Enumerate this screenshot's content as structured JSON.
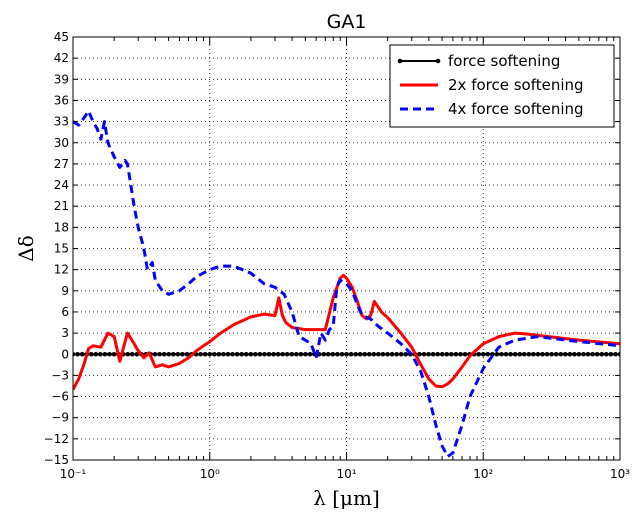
{
  "chart_data": {
    "type": "line",
    "title": "GA1",
    "xlabel": "λ [μm]",
    "ylabel": "Δδ",
    "xscale": "log",
    "xlim": [
      0.1,
      1000
    ],
    "ylim": [
      -15,
      45
    ],
    "grid": true,
    "legend_position": "top-right",
    "x_tick_labels": [
      "10⁻¹",
      "10⁰",
      "10¹",
      "10²",
      "10³"
    ],
    "y_tick_values": [
      -15,
      -12,
      -9,
      -6,
      -3,
      0,
      3,
      6,
      9,
      12,
      15,
      18,
      21,
      24,
      27,
      30,
      33,
      36,
      39,
      42,
      45
    ],
    "series": [
      {
        "name": "force softening",
        "color": "#000000",
        "style": "solid-dots",
        "x": [
          0.1,
          1000
        ],
        "y": [
          0,
          0
        ]
      },
      {
        "name": "2x force softening",
        "color": "#ff0000",
        "style": "solid",
        "x": [
          0.1,
          0.11,
          0.12,
          0.13,
          0.14,
          0.16,
          0.18,
          0.2,
          0.22,
          0.25,
          0.28,
          0.3,
          0.33,
          0.36,
          0.4,
          0.45,
          0.5,
          0.6,
          0.7,
          0.8,
          0.9,
          1.0,
          1.2,
          1.5,
          2.0,
          2.5,
          3.0,
          3.2,
          3.4,
          3.6,
          4.0,
          5.0,
          6.0,
          7.0,
          8.0,
          9.0,
          9.5,
          10.0,
          11.0,
          12.0,
          13.0,
          14.0,
          15.0,
          16.0,
          18.0,
          20.0,
          25.0,
          30.0,
          35.0,
          40.0,
          45.0,
          50.0,
          55.0,
          60.0,
          70.0,
          80.0,
          100.0,
          130.0,
          170.0,
          200.0,
          300.0,
          500.0,
          1000.0
        ],
        "y": [
          -5.0,
          -3.5,
          -1.5,
          0.8,
          1.2,
          1.0,
          3.0,
          2.5,
          -1.0,
          3.0,
          1.5,
          0.5,
          -0.5,
          0.2,
          -1.8,
          -1.5,
          -1.8,
          -1.3,
          -0.5,
          0.5,
          1.2,
          1.8,
          3.0,
          4.2,
          5.3,
          5.7,
          5.5,
          8.0,
          5.5,
          4.5,
          3.8,
          3.5,
          3.5,
          3.5,
          8.0,
          10.8,
          11.2,
          10.8,
          9.5,
          7.5,
          5.5,
          5.0,
          5.5,
          7.5,
          6.0,
          5.2,
          3.0,
          1.0,
          -1.5,
          -3.5,
          -4.5,
          -4.6,
          -4.2,
          -3.5,
          -1.8,
          -0.2,
          1.5,
          2.5,
          3.0,
          2.9,
          2.5,
          2.0,
          1.5
        ]
      },
      {
        "name": "4x force softening",
        "color": "#0000ff",
        "style": "dashed",
        "x": [
          0.1,
          0.11,
          0.12,
          0.13,
          0.14,
          0.15,
          0.16,
          0.17,
          0.18,
          0.2,
          0.22,
          0.24,
          0.25,
          0.26,
          0.28,
          0.3,
          0.33,
          0.35,
          0.38,
          0.4,
          0.45,
          0.5,
          0.6,
          0.7,
          0.8,
          1.0,
          1.2,
          1.5,
          2.0,
          2.5,
          3.0,
          3.5,
          4.0,
          4.5,
          5.0,
          5.5,
          6.0,
          6.5,
          7.0,
          7.5,
          8.0,
          8.5,
          9.0,
          10.0,
          11.0,
          12.0,
          13.0,
          15.0,
          17.0,
          20.0,
          25.0,
          30.0,
          35.0,
          40.0,
          45.0,
          50.0,
          55.0,
          60.0,
          70.0,
          80.0,
          100.0,
          130.0,
          170.0,
          250.0,
          400.0,
          1000.0
        ],
        "y": [
          33.0,
          32.5,
          33.5,
          34.5,
          33.0,
          32.0,
          30.5,
          33.0,
          30.0,
          28.0,
          26.5,
          27.5,
          27.0,
          25.0,
          21.0,
          18.0,
          15.0,
          12.0,
          13.0,
          10.5,
          9.0,
          8.5,
          9.0,
          10.0,
          11.0,
          12.0,
          12.5,
          12.5,
          11.5,
          10.0,
          9.5,
          8.5,
          6.0,
          2.5,
          2.0,
          1.5,
          -0.5,
          3.0,
          2.0,
          3.5,
          4.0,
          9.5,
          10.5,
          10.0,
          9.0,
          7.0,
          5.5,
          5.0,
          4.0,
          3.0,
          1.5,
          0.0,
          -2.5,
          -6.0,
          -10.0,
          -13.0,
          -14.5,
          -14.0,
          -10.0,
          -6.0,
          -2.0,
          1.0,
          2.0,
          2.5,
          2.0,
          1.2
        ]
      }
    ]
  }
}
